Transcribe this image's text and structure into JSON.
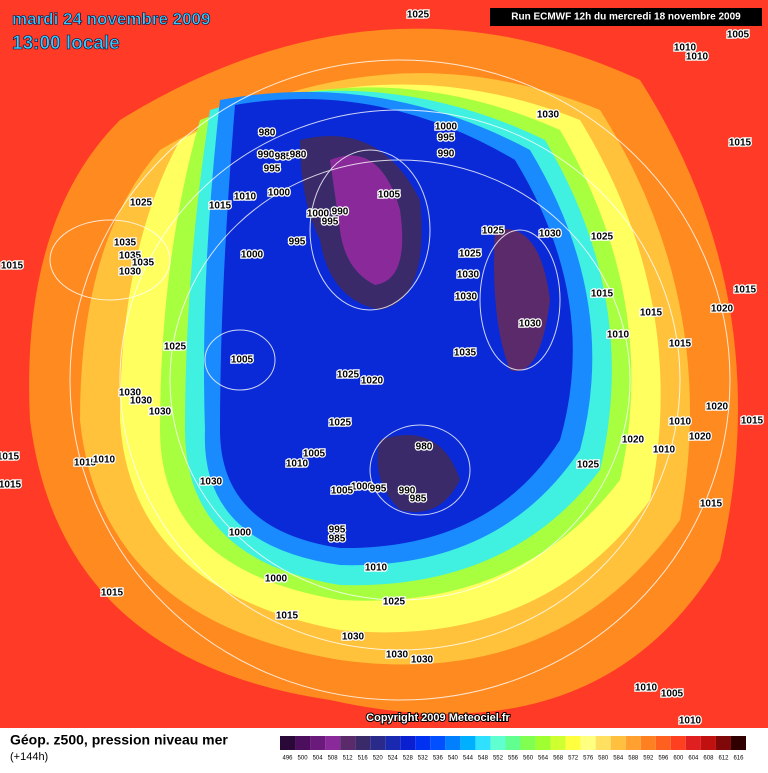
{
  "header": {
    "date": "mardi 24 novembre 2009",
    "time": "13:00 locale",
    "run": "Run ECMWF 12h du mercredi 18 novembre 2009"
  },
  "isobar_labels": [
    1025,
    1005,
    1010,
    1010,
    980,
    1000,
    995,
    990,
    990,
    985,
    980,
    995,
    1030,
    1015,
    1025,
    1015,
    1010,
    1000,
    1005,
    1000,
    990,
    995,
    1025,
    1030,
    1025,
    995,
    1000,
    1035,
    1035,
    1035,
    1030,
    1015,
    1025,
    1030,
    1030,
    1015,
    1015,
    1020,
    1015,
    1030,
    1010,
    1015,
    1025,
    1005,
    1035,
    1025,
    1020,
    1030,
    1030,
    1030,
    1020,
    1025,
    1010,
    1015,
    1020,
    1020,
    980,
    1010,
    1015,
    1005,
    1015,
    1010,
    1010,
    1025,
    1015,
    1030,
    1000,
    995,
    990,
    1005,
    985,
    1015,
    1000,
    995,
    985,
    1010,
    1000,
    1015,
    1025,
    1015,
    1030,
    1030,
    1030,
    1010,
    1005,
    1010
  ],
  "copyright": "Copyright 2009 Meteociel.fr",
  "footer": {
    "label": "Géop. z500, pression niveau mer",
    "lead": "(+144h)"
  },
  "colorbar": {
    "labels": [
      496,
      500,
      504,
      508,
      512,
      516,
      520,
      524,
      528,
      532,
      536,
      540,
      544,
      548,
      552,
      556,
      560,
      564,
      568,
      572,
      576,
      580,
      584,
      588,
      592,
      596,
      600,
      604,
      608,
      612,
      616
    ],
    "colors": [
      "#2a0838",
      "#4b0f5e",
      "#6a1a7a",
      "#8a2a9a",
      "#5a2a6a",
      "#3a2a6a",
      "#2a2a8a",
      "#1a2ab0",
      "#0a20d0",
      "#0030f0",
      "#0050ff",
      "#0080ff",
      "#00b0ff",
      "#30e0ff",
      "#60ffd0",
      "#60ff90",
      "#80ff50",
      "#a0ff30",
      "#d0ff30",
      "#ffff40",
      "#ffff80",
      "#ffe060",
      "#ffc040",
      "#ffa030",
      "#ff8020",
      "#ff6020",
      "#ff4020",
      "#e02020",
      "#c01010",
      "#800808",
      "#300000"
    ]
  }
}
